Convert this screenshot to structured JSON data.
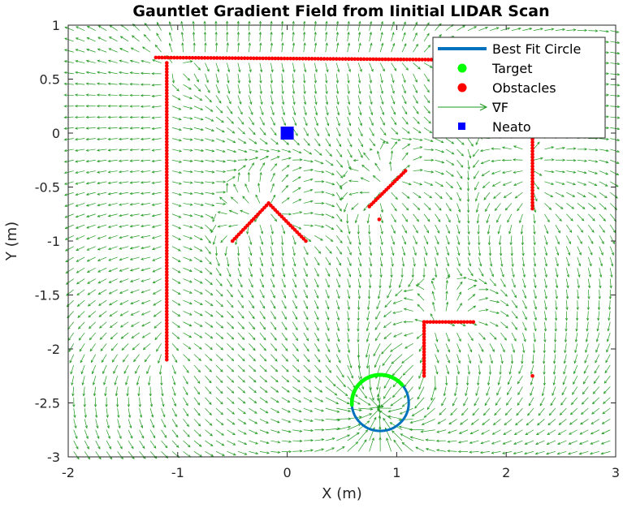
{
  "chart_data": {
    "type": "scatter",
    "title": "Gauntlet Gradient Field from Iinitial LIDAR Scan",
    "xlabel": "X (m)",
    "ylabel": "Y (m)",
    "xlim": [
      -2,
      3
    ],
    "ylim": [
      -3,
      1
    ],
    "xticks": [
      "-2",
      "-1",
      "0",
      "1",
      "2",
      "3"
    ],
    "yticks": [
      "-3",
      "-2.5",
      "-2",
      "-1.5",
      "-1",
      "-0.5",
      "0",
      "0.5",
      "1"
    ],
    "grid": false,
    "legend_position": "top-right",
    "series": [
      {
        "name": "Best Fit Circle",
        "kind": "circle",
        "color": "#0072bd",
        "center": [
          0.85,
          -2.5
        ],
        "radius": 0.26
      },
      {
        "name": "Target",
        "kind": "arc-points",
        "color": "#00ff00",
        "center": [
          0.85,
          -2.5
        ],
        "radius": 0.26,
        "angle_range_deg": [
          40,
          185
        ]
      },
      {
        "name": "Obstacles",
        "kind": "point-segments",
        "color": "#ff0000",
        "segments": [
          {
            "from": [
              -1.2,
              0.7
            ],
            "to": [
              1.4,
              0.68
            ]
          },
          {
            "from": [
              -1.1,
              0.65
            ],
            "to": [
              -1.1,
              -2.1
            ]
          },
          {
            "from": [
              -0.5,
              -1.0
            ],
            "to": [
              -0.17,
              -0.65
            ]
          },
          {
            "from": [
              -0.17,
              -0.65
            ],
            "to": [
              0.17,
              -1.0
            ]
          },
          {
            "from": [
              0.75,
              -0.68
            ],
            "to": [
              1.08,
              -0.35
            ]
          },
          {
            "from": [
              2.24,
              0.0
            ],
            "to": [
              2.24,
              -0.7
            ]
          },
          {
            "from": [
              1.25,
              -1.75
            ],
            "to": [
              1.7,
              -1.75
            ]
          },
          {
            "from": [
              1.25,
              -1.75
            ],
            "to": [
              1.25,
              -2.25
            ]
          }
        ],
        "single_points": [
          [
            0.84,
            -0.8
          ],
          [
            2.24,
            -2.25
          ]
        ]
      },
      {
        "name": "∇F",
        "kind": "quiver",
        "color": "#1f9a1f",
        "attractor": [
          0.85,
          -2.5
        ],
        "attractor_radius": 0.26
      },
      {
        "name": "Neato",
        "kind": "marker",
        "color": "#0000ff",
        "x": 0.0,
        "y": 0.0
      }
    ]
  }
}
